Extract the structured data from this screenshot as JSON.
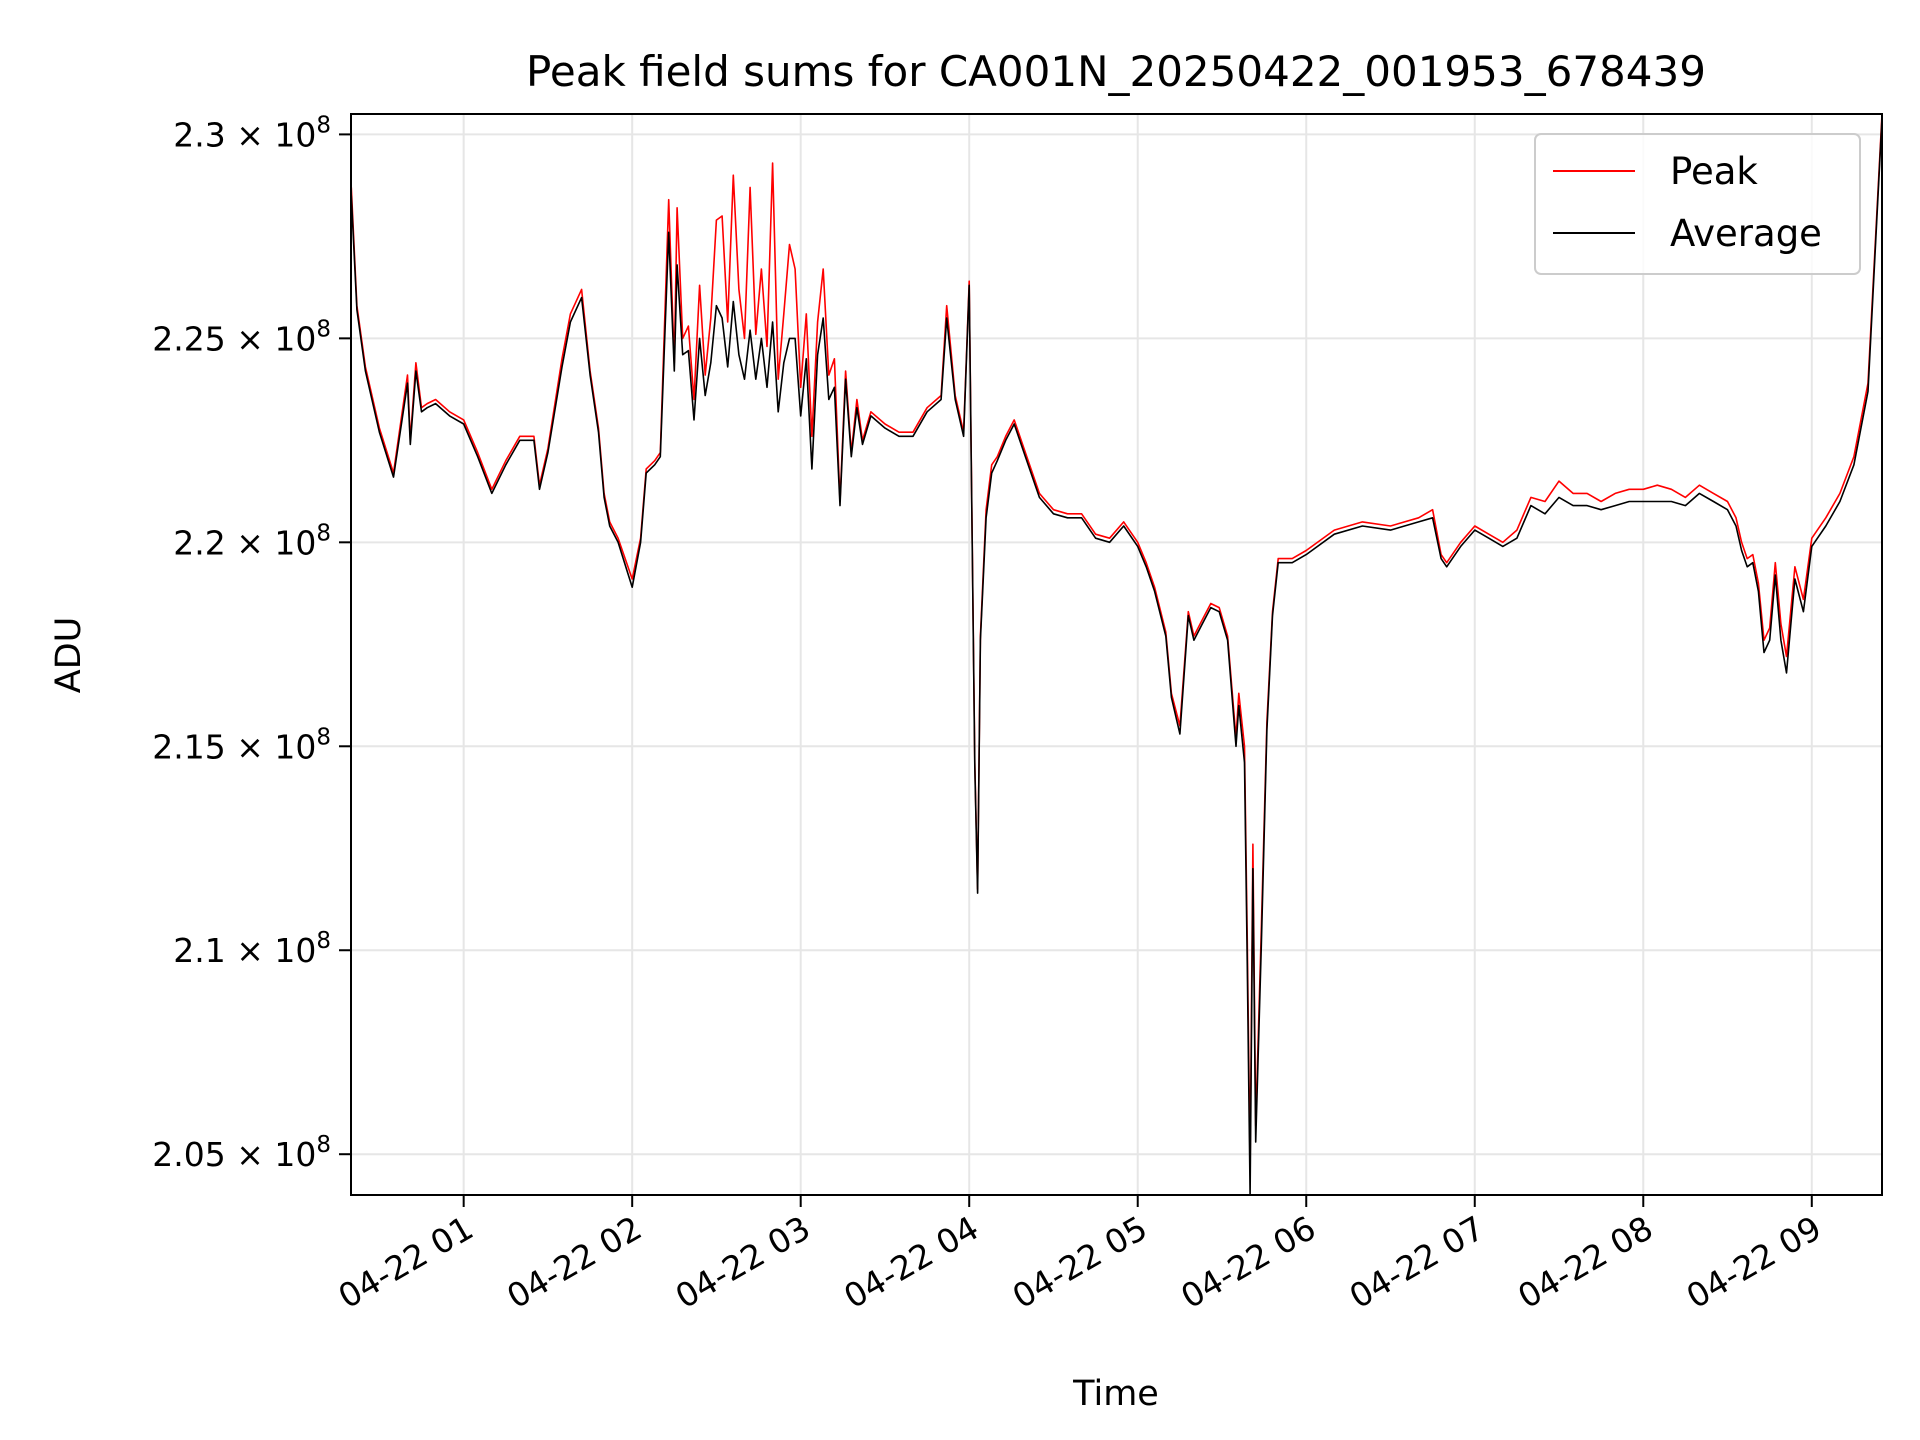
{
  "chart_data": {
    "type": "line",
    "title": "Peak field sums for CA001N_20250422_001953_678439",
    "xlabel": "Time",
    "ylabel": "ADU",
    "xlim": [
      "2025-04-22 00:19:53",
      "2025-04-22 09:25"
    ],
    "ylim": [
      204000000,
      230500000
    ],
    "grid": true,
    "legend": "top-right",
    "x_ticks": [
      {
        "t": "2025-04-22 01:00",
        "label": "04-22 01"
      },
      {
        "t": "2025-04-22 02:00",
        "label": "04-22 02"
      },
      {
        "t": "2025-04-22 03:00",
        "label": "04-22 03"
      },
      {
        "t": "2025-04-22 04:00",
        "label": "04-22 04"
      },
      {
        "t": "2025-04-22 05:00",
        "label": "04-22 05"
      },
      {
        "t": "2025-04-22 06:00",
        "label": "04-22 06"
      },
      {
        "t": "2025-04-22 07:00",
        "label": "04-22 07"
      },
      {
        "t": "2025-04-22 08:00",
        "label": "04-22 08"
      },
      {
        "t": "2025-04-22 09:00",
        "label": "04-22 09"
      }
    ],
    "y_ticks": [
      {
        "v": 205000000,
        "mantissa": "2.05",
        "exp": "8"
      },
      {
        "v": 210000000,
        "mantissa": "2.1",
        "exp": "8"
      },
      {
        "v": 215000000,
        "mantissa": "2.15",
        "exp": "8"
      },
      {
        "v": 220000000,
        "mantissa": "2.2",
        "exp": "8"
      },
      {
        "v": 225000000,
        "mantissa": "2.25",
        "exp": "8"
      },
      {
        "v": 230000000,
        "mantissa": "2.3",
        "exp": "8"
      }
    ],
    "times": [
      "2025-04-22 00:20",
      "2025-04-22 00:22",
      "2025-04-22 00:25",
      "2025-04-22 00:30",
      "2025-04-22 00:35",
      "2025-04-22 00:40",
      "2025-04-22 00:41",
      "2025-04-22 00:43",
      "2025-04-22 00:45",
      "2025-04-22 00:47",
      "2025-04-22 00:50",
      "2025-04-22 00:55",
      "2025-04-22 01:00",
      "2025-04-22 01:05",
      "2025-04-22 01:10",
      "2025-04-22 01:15",
      "2025-04-22 01:20",
      "2025-04-22 01:25",
      "2025-04-22 01:27",
      "2025-04-22 01:30",
      "2025-04-22 01:35",
      "2025-04-22 01:38",
      "2025-04-22 01:42",
      "2025-04-22 01:45",
      "2025-04-22 01:48",
      "2025-04-22 01:50",
      "2025-04-22 01:52",
      "2025-04-22 01:55",
      "2025-04-22 02:00",
      "2025-04-22 02:03",
      "2025-04-22 02:05",
      "2025-04-22 02:08",
      "2025-04-22 02:10",
      "2025-04-22 02:13",
      "2025-04-22 02:15",
      "2025-04-22 02:16",
      "2025-04-22 02:18",
      "2025-04-22 02:20",
      "2025-04-22 02:22",
      "2025-04-22 02:24",
      "2025-04-22 02:26",
      "2025-04-22 02:28",
      "2025-04-22 02:30",
      "2025-04-22 02:32",
      "2025-04-22 02:34",
      "2025-04-22 02:36",
      "2025-04-22 02:38",
      "2025-04-22 02:40",
      "2025-04-22 02:42",
      "2025-04-22 02:44",
      "2025-04-22 02:46",
      "2025-04-22 02:48",
      "2025-04-22 02:50",
      "2025-04-22 02:52",
      "2025-04-22 02:54",
      "2025-04-22 02:56",
      "2025-04-22 02:58",
      "2025-04-22 03:00",
      "2025-04-22 03:02",
      "2025-04-22 03:04",
      "2025-04-22 03:06",
      "2025-04-22 03:08",
      "2025-04-22 03:10",
      "2025-04-22 03:12",
      "2025-04-22 03:14",
      "2025-04-22 03:16",
      "2025-04-22 03:18",
      "2025-04-22 03:20",
      "2025-04-22 03:22",
      "2025-04-22 03:25",
      "2025-04-22 03:30",
      "2025-04-22 03:35",
      "2025-04-22 03:40",
      "2025-04-22 03:45",
      "2025-04-22 03:50",
      "2025-04-22 03:52",
      "2025-04-22 03:55",
      "2025-04-22 03:58",
      "2025-04-22 04:00",
      "2025-04-22 04:02",
      "2025-04-22 04:03",
      "2025-04-22 04:04",
      "2025-04-22 04:06",
      "2025-04-22 04:08",
      "2025-04-22 04:10",
      "2025-04-22 04:13",
      "2025-04-22 04:16",
      "2025-04-22 04:20",
      "2025-04-22 04:25",
      "2025-04-22 04:30",
      "2025-04-22 04:35",
      "2025-04-22 04:40",
      "2025-04-22 04:45",
      "2025-04-22 04:50",
      "2025-04-22 04:55",
      "2025-04-22 05:00",
      "2025-04-22 05:03",
      "2025-04-22 05:06",
      "2025-04-22 05:10",
      "2025-04-22 05:12",
      "2025-04-22 05:15",
      "2025-04-22 05:18",
      "2025-04-22 05:20",
      "2025-04-22 05:23",
      "2025-04-22 05:26",
      "2025-04-22 05:29",
      "2025-04-22 05:32",
      "2025-04-22 05:35",
      "2025-04-22 05:36",
      "2025-04-22 05:38",
      "2025-04-22 05:39",
      "2025-04-22 05:40",
      "2025-04-22 05:41",
      "2025-04-22 05:42",
      "2025-04-22 05:44",
      "2025-04-22 05:46",
      "2025-04-22 05:48",
      "2025-04-22 05:50",
      "2025-04-22 05:55",
      "2025-04-22 06:00",
      "2025-04-22 06:10",
      "2025-04-22 06:20",
      "2025-04-22 06:30",
      "2025-04-22 06:40",
      "2025-04-22 06:45",
      "2025-04-22 06:48",
      "2025-04-22 06:50",
      "2025-04-22 06:55",
      "2025-04-22 07:00",
      "2025-04-22 07:05",
      "2025-04-22 07:10",
      "2025-04-22 07:15",
      "2025-04-22 07:20",
      "2025-04-22 07:25",
      "2025-04-22 07:30",
      "2025-04-22 07:35",
      "2025-04-22 07:40",
      "2025-04-22 07:45",
      "2025-04-22 07:50",
      "2025-04-22 07:55",
      "2025-04-22 08:00",
      "2025-04-22 08:05",
      "2025-04-22 08:10",
      "2025-04-22 08:15",
      "2025-04-22 08:20",
      "2025-04-22 08:25",
      "2025-04-22 08:30",
      "2025-04-22 08:33",
      "2025-04-22 08:35",
      "2025-04-22 08:37",
      "2025-04-22 08:39",
      "2025-04-22 08:41",
      "2025-04-22 08:43",
      "2025-04-22 08:45",
      "2025-04-22 08:47",
      "2025-04-22 08:49",
      "2025-04-22 08:51",
      "2025-04-22 08:54",
      "2025-04-22 08:57",
      "2025-04-22 09:00",
      "2025-04-22 09:05",
      "2025-04-22 09:10",
      "2025-04-22 09:15",
      "2025-04-22 09:20",
      "2025-04-22 09:25"
    ],
    "series": [
      {
        "name": "Peak",
        "color": "#ff0000",
        "values": [
          228700000,
          225800000,
          224300000,
          222800000,
          221700000,
          224100000,
          222500000,
          224400000,
          223300000,
          223400000,
          223500000,
          223200000,
          223000000,
          222200000,
          221300000,
          222000000,
          222600000,
          222600000,
          221400000,
          222300000,
          224500000,
          225600000,
          226200000,
          224200000,
          222800000,
          221200000,
          220500000,
          220100000,
          219100000,
          220100000,
          221800000,
          222000000,
          222200000,
          228400000,
          224400000,
          228200000,
          225000000,
          225300000,
          223500000,
          226300000,
          224100000,
          225500000,
          227900000,
          228000000,
          225400000,
          229000000,
          226200000,
          225000000,
          228700000,
          225100000,
          226700000,
          224800000,
          229300000,
          224000000,
          225600000,
          227300000,
          226700000,
          223800000,
          225600000,
          222600000,
          225400000,
          226700000,
          224100000,
          224500000,
          221000000,
          224200000,
          222200000,
          223500000,
          222500000,
          223200000,
          222900000,
          222700000,
          222700000,
          223300000,
          223600000,
          225800000,
          223600000,
          222700000,
          226400000,
          214600000,
          211500000,
          217700000,
          220800000,
          221900000,
          222100000,
          222600000,
          223000000,
          222200000,
          221200000,
          220800000,
          220700000,
          220700000,
          220200000,
          220100000,
          220500000,
          220000000,
          219500000,
          218900000,
          217800000,
          216300000,
          215500000,
          218300000,
          217700000,
          218100000,
          218500000,
          218400000,
          217700000,
          215200000,
          216300000,
          215000000,
          210200000,
          204700000,
          212600000,
          205700000,
          210500000,
          215600000,
          218300000,
          219600000,
          219600000,
          219800000,
          220300000,
          220500000,
          220400000,
          220600000,
          220800000,
          219700000,
          219500000,
          220000000,
          220400000,
          220200000,
          220000000,
          220300000,
          221100000,
          221000000,
          221500000,
          221200000,
          221200000,
          221000000,
          221200000,
          221300000,
          221300000,
          221400000,
          221300000,
          221100000,
          221400000,
          221200000,
          221000000,
          220600000,
          220000000,
          219600000,
          219700000,
          219000000,
          217600000,
          217900000,
          219500000,
          218000000,
          217200000,
          219400000,
          218600000,
          220100000,
          220600000,
          221200000,
          222100000,
          223900000,
          230500000
        ]
      },
      {
        "name": "Average",
        "color": "#000000",
        "values": [
          228500000,
          225700000,
          224200000,
          222700000,
          221600000,
          223900000,
          222400000,
          224200000,
          223200000,
          223300000,
          223400000,
          223100000,
          222900000,
          222100000,
          221200000,
          221900000,
          222500000,
          222500000,
          221300000,
          222200000,
          224300000,
          225400000,
          226000000,
          224100000,
          222700000,
          221100000,
          220400000,
          220000000,
          218900000,
          220000000,
          221700000,
          221900000,
          222100000,
          227600000,
          224200000,
          226800000,
          224600000,
          224700000,
          223000000,
          225000000,
          223600000,
          224400000,
          225800000,
          225500000,
          224300000,
          225900000,
          224600000,
          224000000,
          225200000,
          224000000,
          225000000,
          223800000,
          225400000,
          223200000,
          224400000,
          225000000,
          225000000,
          223100000,
          224500000,
          221800000,
          224600000,
          225500000,
          223500000,
          223800000,
          220900000,
          224000000,
          222100000,
          223300000,
          222400000,
          223100000,
          222800000,
          222600000,
          222600000,
          223200000,
          223500000,
          225500000,
          223500000,
          222600000,
          226300000,
          214500000,
          211400000,
          217600000,
          220600000,
          221700000,
          222000000,
          222500000,
          222900000,
          222100000,
          221100000,
          220700000,
          220600000,
          220600000,
          220100000,
          220000000,
          220400000,
          219900000,
          219400000,
          218800000,
          217700000,
          216200000,
          215300000,
          218200000,
          217600000,
          218000000,
          218400000,
          218300000,
          217600000,
          215000000,
          216000000,
          214600000,
          209600000,
          204000000,
          212000000,
          205300000,
          210100000,
          215400000,
          218200000,
          219500000,
          219500000,
          219700000,
          220200000,
          220400000,
          220300000,
          220500000,
          220600000,
          219600000,
          219400000,
          219900000,
          220300000,
          220100000,
          219900000,
          220100000,
          220900000,
          220700000,
          221100000,
          220900000,
          220900000,
          220800000,
          220900000,
          221000000,
          221000000,
          221000000,
          221000000,
          220900000,
          221200000,
          221000000,
          220800000,
          220400000,
          219800000,
          219400000,
          219500000,
          218800000,
          217300000,
          217600000,
          219200000,
          217600000,
          216800000,
          219100000,
          218300000,
          219900000,
          220400000,
          221000000,
          221900000,
          223700000,
          230400000
        ]
      }
    ]
  }
}
